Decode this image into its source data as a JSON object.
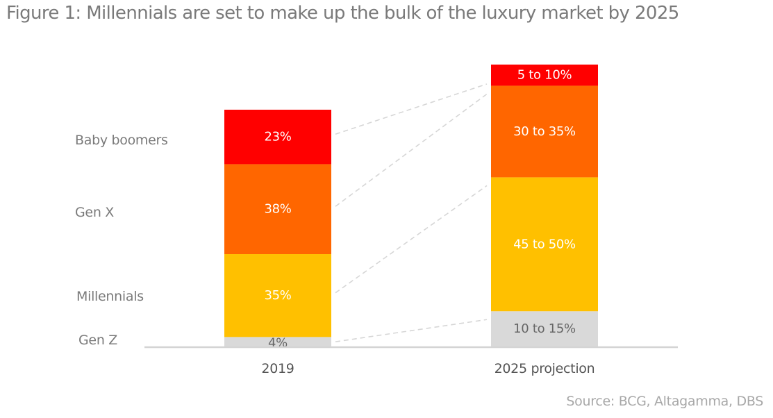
{
  "chart_data": {
    "type": "bar",
    "stacked": true,
    "title": "Figure 1: Millennials are set to make up the bulk of the luxury market by 2025",
    "xlabel": "",
    "ylabel": "",
    "categories": [
      "2019",
      "2025 projection"
    ],
    "series": [
      {
        "name": "Gen Z",
        "color": "#d9d9d9",
        "label_color": "#666666",
        "values": [
          4,
          12.5
        ],
        "labels": [
          "4%",
          "10 to 15%"
        ]
      },
      {
        "name": "Millennials",
        "color": "#ffc000",
        "label_color": "#ffffff",
        "values": [
          35,
          47.5
        ],
        "labels": [
          "35%",
          "45 to 50%"
        ]
      },
      {
        "name": "Gen X",
        "color": "#ff6600",
        "label_color": "#ffffff",
        "values": [
          38,
          32.5
        ],
        "labels": [
          "38%",
          "30 to 35%"
        ]
      },
      {
        "name": "Baby boomers",
        "color": "#ff0000",
        "label_color": "#ffffff",
        "values": [
          23,
          7.5
        ],
        "labels": [
          "23%",
          "5 to 10%"
        ]
      }
    ],
    "legend": [
      "Baby boomers",
      "Gen X",
      "Millennials",
      "Gen Z"
    ],
    "legend_position": "left",
    "grid": false,
    "connectors": "dashed lines linking each segment of 2019 to the same segment of 2025 projection",
    "source": "Source: BCG, Altagamma, DBS"
  }
}
